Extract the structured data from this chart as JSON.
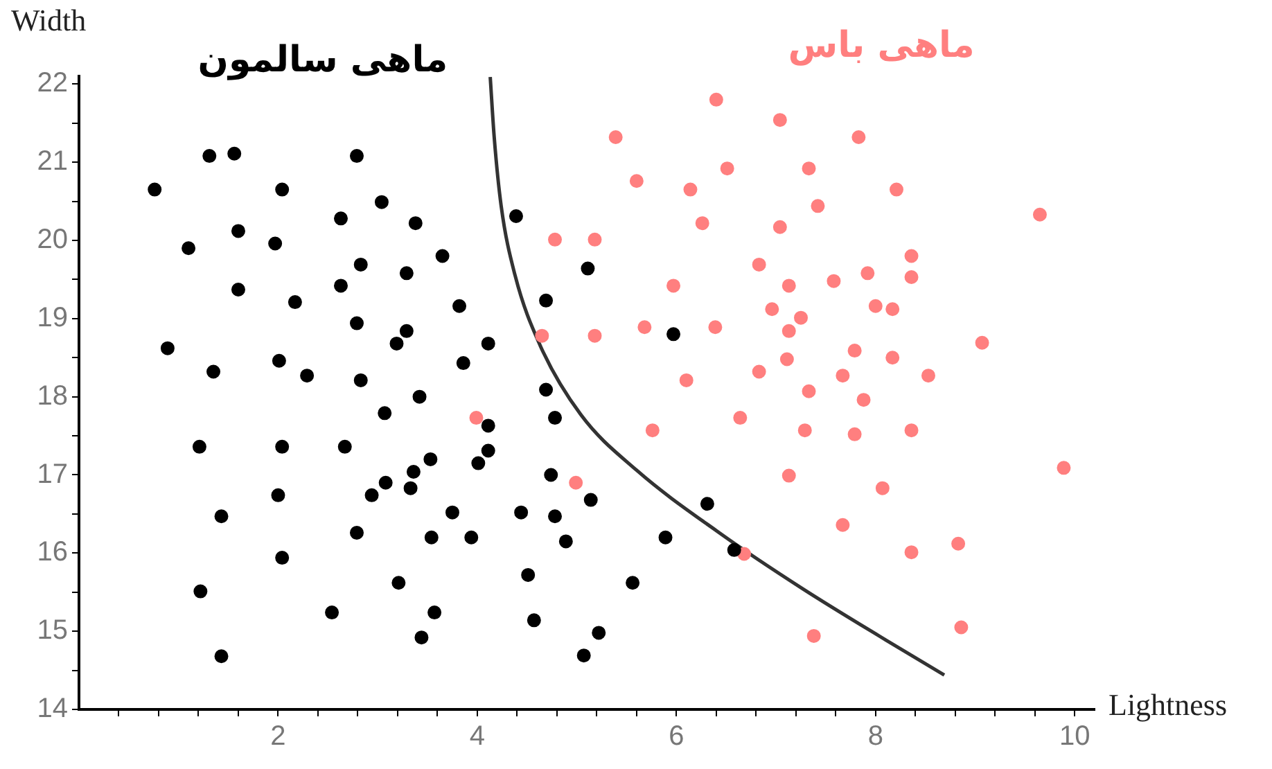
{
  "chart_data": {
    "type": "scatter",
    "xlabel": "Lightness",
    "ylabel": "Width",
    "legend": false,
    "grid": false,
    "marker": "circle",
    "xlim": [
      0,
      10.2
    ],
    "ylim": [
      14,
      22.1
    ],
    "xticks": [
      {
        "value": 0.4,
        "label": null
      },
      {
        "value": 0.8,
        "label": null
      },
      {
        "value": 1.2,
        "label": null
      },
      {
        "value": 1.6,
        "label": null
      },
      2,
      {
        "value": 2.4,
        "label": null
      },
      {
        "value": 2.8,
        "label": null
      },
      {
        "value": 3.2,
        "label": null
      },
      {
        "value": 3.6,
        "label": null
      },
      4,
      {
        "value": 4.4,
        "label": null
      },
      {
        "value": 4.8,
        "label": null
      },
      {
        "value": 5.2,
        "label": null
      },
      {
        "value": 5.6,
        "label": null
      },
      6,
      {
        "value": 6.4,
        "label": null
      },
      {
        "value": 6.8,
        "label": null
      },
      {
        "value": 7.2,
        "label": null
      },
      {
        "value": 7.6,
        "label": null
      },
      8,
      {
        "value": 8.4,
        "label": null
      },
      {
        "value": 8.8,
        "label": null
      },
      {
        "value": 9.2,
        "label": null
      },
      {
        "value": 9.6,
        "label": null
      },
      10
    ],
    "yticks": [
      14,
      {
        "value": 14.5,
        "label": null
      },
      15,
      {
        "value": 15.5,
        "label": null
      },
      16,
      {
        "value": 16.5,
        "label": null
      },
      17,
      {
        "value": 17.5,
        "label": null
      },
      18,
      {
        "value": 18.5,
        "label": null
      },
      19,
      {
        "value": 19.5,
        "label": null
      },
      20,
      {
        "value": 20.5,
        "label": null
      },
      21,
      {
        "value": 21.5,
        "label": null
      },
      22
    ],
    "series": [
      {
        "name": "ماهی سالمون",
        "color": "#000000",
        "x": [
          0.76,
          1.31,
          1.56,
          2.79,
          2.04,
          3.04,
          2.63,
          3.38,
          1.6,
          1.1,
          1.97,
          3.65,
          2.83,
          3.29,
          2.63,
          1.6,
          2.17,
          3.82,
          2.79,
          3.29,
          3.19,
          4.11,
          0.89,
          2.01,
          3.86,
          1.35,
          2.29,
          2.83,
          3.42,
          1.21,
          2.04,
          2.67,
          3.07,
          4.11,
          4.11,
          4.01,
          3.53,
          3.36,
          3.08,
          3.33,
          2.94,
          2.0,
          3.75,
          1.43,
          2.79,
          3.54,
          3.94,
          2.04,
          3.21,
          1.22,
          2.54,
          3.57,
          3.44,
          1.43,
          4.69,
          4.78,
          4.74,
          4.44,
          4.78,
          5.14,
          4.89,
          4.51,
          4.57,
          5.22,
          5.07,
          5.56,
          5.89,
          6.31,
          6.58,
          4.39,
          5.11,
          4.69,
          5.97
        ],
        "values": [
          20.65,
          21.08,
          21.11,
          21.08,
          20.65,
          20.49,
          20.28,
          20.22,
          20.12,
          19.9,
          19.96,
          19.8,
          19.69,
          19.58,
          19.42,
          19.37,
          19.21,
          19.16,
          18.94,
          18.84,
          18.68,
          18.68,
          18.62,
          18.46,
          18.43,
          18.32,
          18.27,
          18.21,
          18.0,
          17.36,
          17.36,
          17.36,
          17.79,
          17.63,
          17.31,
          17.15,
          17.2,
          17.04,
          16.9,
          16.83,
          16.74,
          16.74,
          16.52,
          16.47,
          16.26,
          16.2,
          16.2,
          15.94,
          15.62,
          15.51,
          15.24,
          15.24,
          14.92,
          14.68,
          18.09,
          17.73,
          17.0,
          16.52,
          16.47,
          16.68,
          16.15,
          15.72,
          15.14,
          14.98,
          14.69,
          15.62,
          16.2,
          16.63,
          16.04,
          20.31,
          19.64,
          19.23,
          18.8
        ]
      },
      {
        "name": "ماهی باس",
        "color": "#ff7f7f",
        "x": [
          6.4,
          7.04,
          5.39,
          7.83,
          6.51,
          7.33,
          5.6,
          6.14,
          8.21,
          7.42,
          9.65,
          6.26,
          7.04,
          4.78,
          5.18,
          8.36,
          6.83,
          7.92,
          8.36,
          7.58,
          5.97,
          7.13,
          8.0,
          6.96,
          8.17,
          7.25,
          4.65,
          5.18,
          5.68,
          6.39,
          7.13,
          9.07,
          7.79,
          7.11,
          8.17,
          6.83,
          7.67,
          8.53,
          6.1,
          7.33,
          7.88,
          3.99,
          5.76,
          6.64,
          7.29,
          7.79,
          8.36,
          9.89,
          7.13,
          4.99,
          8.07,
          7.67,
          8.83,
          6.68,
          8.86,
          7.38,
          8.36
        ],
        "values": [
          21.8,
          21.54,
          21.32,
          21.32,
          20.92,
          20.92,
          20.76,
          20.65,
          20.65,
          20.44,
          20.33,
          20.22,
          20.17,
          20.01,
          20.01,
          19.8,
          19.69,
          19.58,
          19.53,
          19.48,
          19.42,
          19.42,
          19.16,
          19.12,
          19.12,
          19.01,
          18.78,
          18.78,
          18.89,
          18.89,
          18.84,
          18.69,
          18.59,
          18.48,
          18.5,
          18.32,
          18.27,
          18.27,
          18.21,
          18.07,
          17.96,
          17.73,
          17.57,
          17.73,
          17.57,
          17.52,
          17.57,
          17.09,
          16.99,
          16.9,
          16.83,
          16.36,
          16.12,
          15.99,
          15.05,
          14.94,
          16.01
        ]
      },
      {
        "type": "line",
        "color": "#333333",
        "marker": "none",
        "x": [
          4.13,
          4.17,
          4.24,
          4.38,
          4.63,
          5.04,
          5.6,
          6.43,
          7.26,
          8.1,
          8.69
        ],
        "values": [
          22.09,
          21.32,
          20.44,
          19.55,
          18.66,
          17.77,
          17.06,
          16.26,
          15.55,
          14.89,
          14.44
        ]
      }
    ]
  }
}
